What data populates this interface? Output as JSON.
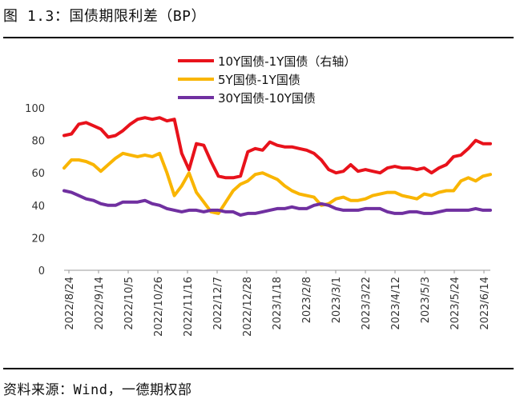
{
  "figure": {
    "title": "图 1.3：国债期限利差（BP）",
    "source": "资料来源：Wind，一德期权部"
  },
  "chart_data": {
    "type": "line",
    "title": "国债期限利差（BP）",
    "ylim": [
      0,
      100
    ],
    "yticks": [
      "0",
      "20",
      "40",
      "60",
      "80",
      "100"
    ],
    "x_labels": [
      "2022/8/24",
      "2022/9/14",
      "2022/10/5",
      "2022/10/26",
      "2022/11/16",
      "2022/12/7",
      "2022/12/28",
      "2023/1/18",
      "2023/2/8",
      "2023/3/1",
      "2023/3/22",
      "2023/4/12",
      "2023/5/3",
      "2023/5/24",
      "2023/6/14"
    ],
    "legend_position": "top",
    "series": [
      {
        "name": "10Y国债-1Y国债（右轴）",
        "color": "#e8121b",
        "values": [
          83,
          84,
          90,
          91,
          89,
          87,
          82,
          83,
          86,
          90,
          93,
          94,
          93,
          94,
          92,
          93,
          72,
          62,
          78,
          77,
          67,
          58,
          57,
          57,
          58,
          73,
          75,
          74,
          79,
          77,
          76,
          76,
          75,
          74,
          72,
          68,
          62,
          60,
          61,
          65,
          61,
          62,
          61,
          60,
          63,
          64,
          63,
          63,
          62,
          63,
          60,
          63,
          65,
          70,
          71,
          75,
          80,
          78,
          78
        ]
      },
      {
        "name": "5Y国债-1Y国债",
        "color": "#f9b500",
        "values": [
          63,
          68,
          68,
          67,
          65,
          61,
          65,
          69,
          72,
          71,
          70,
          71,
          70,
          72,
          60,
          46,
          52,
          60,
          48,
          42,
          36,
          35,
          42,
          49,
          53,
          55,
          59,
          60,
          58,
          56,
          52,
          49,
          47,
          46,
          45,
          40,
          41,
          44,
          45,
          43,
          43,
          44,
          46,
          47,
          48,
          48,
          46,
          45,
          44,
          47,
          46,
          48,
          49,
          49,
          55,
          57,
          55,
          58,
          59
        ]
      },
      {
        "name": "30Y国债-10Y国债",
        "color": "#7030a0",
        "values": [
          49,
          48,
          46,
          44,
          43,
          41,
          40,
          40,
          42,
          42,
          42,
          43,
          41,
          40,
          38,
          37,
          36,
          37,
          37,
          36,
          37,
          37,
          36,
          36,
          34,
          35,
          35,
          36,
          37,
          38,
          38,
          39,
          38,
          38,
          40,
          41,
          40,
          38,
          37,
          37,
          37,
          38,
          38,
          38,
          36,
          35,
          35,
          36,
          36,
          35,
          35,
          36,
          37,
          37,
          37,
          37,
          38,
          37,
          37
        ]
      }
    ]
  }
}
